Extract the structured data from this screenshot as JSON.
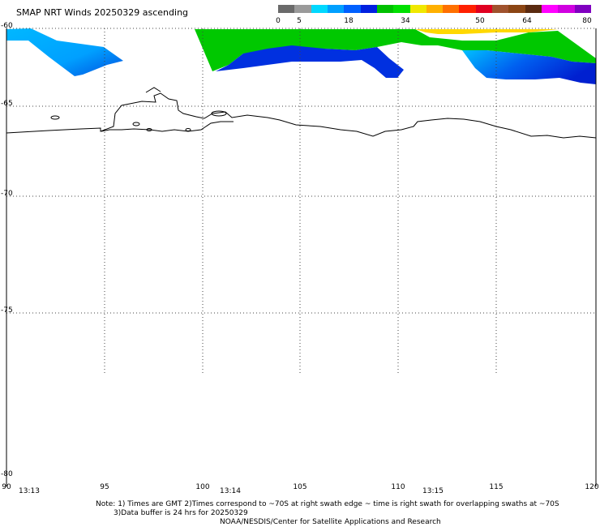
{
  "title": "SMAP NRT Winds 20250329 ascending",
  "colorbar": {
    "ticks": [
      "0",
      "5",
      "18",
      "34",
      "50",
      "64",
      "80"
    ],
    "colors": [
      "#6a6a6a",
      "#9a9a9a",
      "#00d8ff",
      "#00a0ff",
      "#0060ff",
      "#0020e0",
      "#00c000",
      "#00e000",
      "#f0e800",
      "#ffb000",
      "#ff7000",
      "#ff2000",
      "#e00020",
      "#a0522d",
      "#8b4513",
      "#5a2a10",
      "#ff00ff",
      "#d000e0",
      "#8000c0"
    ]
  },
  "map": {
    "lat_labels": [
      "-60",
      "-65",
      "-70",
      "-75",
      "-80"
    ],
    "lon_labels": [
      "90",
      "95",
      "100",
      "105",
      "110",
      "115",
      "120"
    ],
    "time_labels": [
      "13:13",
      "13:14",
      "13:15"
    ],
    "colors": {
      "land": "#ffffff",
      "coast": "#000000",
      "wind_light": "#00c8ff",
      "wind_mid": "#0030e0",
      "wind_high": "#00c800",
      "wind_gale": "#ffd800"
    }
  },
  "note": {
    "line1": "Note: 1) Times are GMT 2)Times correspond to ~70S at right swath edge ~ time is right swath for overlapping swaths at ~70S",
    "line2": "3)Data buffer is 24 hrs for 20250329",
    "line3": "NOAA/NESDIS/Center for Satellite Applications and Research"
  }
}
